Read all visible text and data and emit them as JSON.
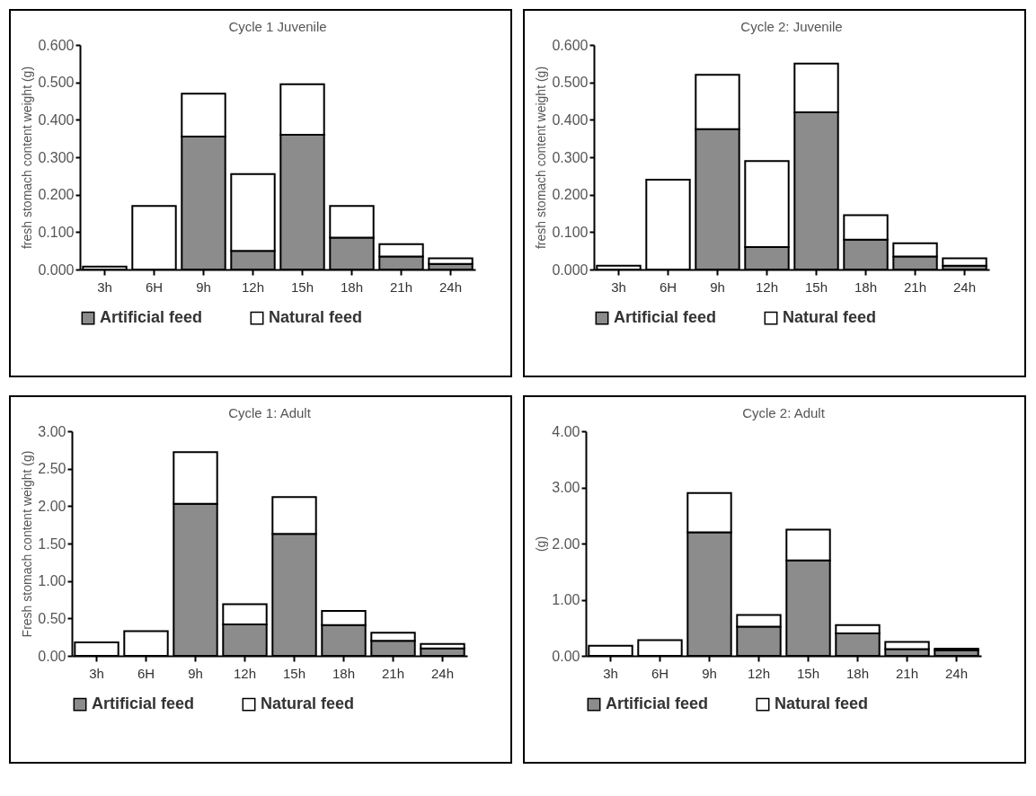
{
  "chart_data": [
    {
      "type": "bar",
      "stacked": true,
      "title": "Cycle 1 Juvenile",
      "ylabel": "fresh stomach content weight (g)",
      "categories": [
        "3h",
        "6H",
        "9h",
        "12h",
        "15h",
        "18h",
        "21h",
        "24h"
      ],
      "series": [
        {
          "name": "Artificial feed",
          "color": "#8c8c8c",
          "values": [
            null,
            0,
            0.355,
            0.05,
            0.36,
            0.085,
            0.035,
            0.015
          ]
        },
        {
          "name": "Natural feed",
          "color": "#ffffff",
          "values": [
            0.008,
            0.17,
            0.115,
            0.205,
            0.135,
            0.085,
            0.033,
            0.015
          ]
        }
      ],
      "ylim": [
        0,
        0.6
      ],
      "yticks": [
        {
          "value": 0,
          "label": "0.000"
        },
        {
          "value": 0.1,
          "label": "0.100"
        },
        {
          "value": 0.2,
          "label": "0.200"
        },
        {
          "value": 0.3,
          "label": "0.300"
        },
        {
          "value": 0.4,
          "label": "0.400"
        },
        {
          "value": 0.5,
          "label": "0.500"
        },
        {
          "value": 0.6,
          "label": "0.600"
        }
      ],
      "grid": false,
      "legend": "bottom"
    },
    {
      "type": "bar",
      "stacked": true,
      "title": "Cycle 2: Juvenile",
      "ylabel": "fresh stomach content weight (g)",
      "categories": [
        "3h",
        "6H",
        "9h",
        "12h",
        "15h",
        "18h",
        "21h",
        "24h"
      ],
      "series": [
        {
          "name": "Artificial feed",
          "color": "#8c8c8c",
          "values": [
            0,
            0,
            0.375,
            0.06,
            0.42,
            0.08,
            0.035,
            0.01
          ]
        },
        {
          "name": "Natural feed",
          "color": "#ffffff",
          "values": [
            0.01,
            0.24,
            0.145,
            0.23,
            0.13,
            0.065,
            0.035,
            0.02
          ]
        }
      ],
      "ylim": [
        0,
        0.6
      ],
      "yticks": [
        {
          "value": 0,
          "label": "0.000"
        },
        {
          "value": 0.1,
          "label": "0.100"
        },
        {
          "value": 0.2,
          "label": "0.200"
        },
        {
          "value": 0.3,
          "label": "0.300"
        },
        {
          "value": 0.4,
          "label": "0.400"
        },
        {
          "value": 0.5,
          "label": "0.500"
        },
        {
          "value": 0.6,
          "label": "0.600"
        }
      ],
      "grid": false,
      "legend": "bottom"
    },
    {
      "type": "bar",
      "stacked": true,
      "title": "Cycle 1: Adult",
      "ylabel": "Fresh stomach content weight (g)",
      "categories": [
        "3h",
        "6H",
        "9h",
        "12h",
        "15h",
        "18h",
        "21h",
        "24h"
      ],
      "series": [
        {
          "name": "Artificial feed",
          "color": "#8c8c8c",
          "values": [
            null,
            0,
            2.03,
            0.42,
            1.63,
            0.41,
            0.2,
            0.1
          ]
        },
        {
          "name": "Natural feed",
          "color": "#ffffff",
          "values": [
            0.18,
            0.33,
            0.69,
            0.27,
            0.49,
            0.19,
            0.11,
            0.06
          ]
        }
      ],
      "ylim": [
        0,
        3
      ],
      "yticks": [
        {
          "value": 0,
          "label": "0.00"
        },
        {
          "value": 0.5,
          "label": "0.50"
        },
        {
          "value": 1,
          "label": "1.00"
        },
        {
          "value": 1.5,
          "label": "1.50"
        },
        {
          "value": 2,
          "label": "2.00"
        },
        {
          "value": 2.5,
          "label": "2.50"
        },
        {
          "value": 3,
          "label": "3.00"
        }
      ],
      "grid": false,
      "legend": "bottom"
    },
    {
      "type": "bar",
      "stacked": true,
      "title": "Cycle 2: Adult",
      "ylabel": "(g)",
      "categories": [
        "3h",
        "6H",
        "9h",
        "12h",
        "15h",
        "18h",
        "21h",
        "24h"
      ],
      "series": [
        {
          "name": "Artificial feed",
          "color": "#8c8c8c",
          "values": [
            null,
            0,
            2.2,
            0.52,
            1.7,
            0.4,
            0.12,
            0.1
          ]
        },
        {
          "name": "Natural feed",
          "color": "#ffffff",
          "values": [
            0.18,
            0.28,
            0.7,
            0.21,
            0.55,
            0.15,
            0.13,
            0.03
          ]
        }
      ],
      "ylim": [
        0,
        4
      ],
      "yticks": [
        {
          "value": 0,
          "label": "0.00"
        },
        {
          "value": 1,
          "label": "1.00"
        },
        {
          "value": 2,
          "label": "2.00"
        },
        {
          "value": 3,
          "label": "3.00"
        },
        {
          "value": 4,
          "label": "4.00"
        }
      ],
      "grid": false,
      "legend": "bottom"
    }
  ]
}
